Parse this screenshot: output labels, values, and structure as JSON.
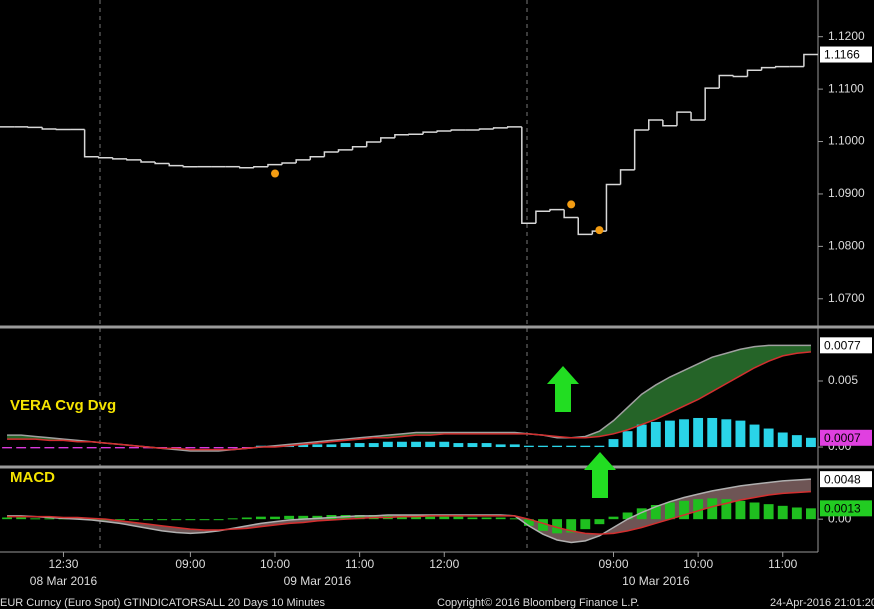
{
  "chart_data": [
    {
      "type": "line",
      "ylim": [
        1.065,
        1.127
      ],
      "yticks": [
        {
          "value": 1.07,
          "label": "1.0700"
        },
        {
          "value": 1.08,
          "label": "1.0800"
        },
        {
          "value": 1.09,
          "label": "1.0900"
        },
        {
          "value": 1.1,
          "label": "1.1000"
        },
        {
          "value": 1.11,
          "label": "1.1100"
        },
        {
          "value": 1.12,
          "label": "1.1200"
        }
      ],
      "series": [
        {
          "color": "#d8d8d8",
          "box_color": "#ffffff",
          "values": [
            1.1028,
            1.1028,
            1.1027,
            1.1024,
            1.1023,
            1.1023,
            1.0971,
            1.0969,
            1.0967,
            1.0965,
            1.0961,
            1.0958,
            1.0954,
            1.0952,
            1.0952,
            1.0952,
            1.0952,
            1.095,
            1.0952,
            1.0956,
            1.0959,
            1.0965,
            1.0971,
            1.098,
            1.0984,
            1.099,
            1.0999,
            1.1007,
            1.1013,
            1.1014,
            1.1018,
            1.102,
            1.1022,
            1.1022,
            1.1024,
            1.1026,
            1.1028,
            1.0844,
            1.0867,
            1.087,
            1.0855,
            1.0823,
            1.0829,
            1.0918,
            1.0946,
            1.1022,
            1.1041,
            1.103,
            1.1056,
            1.1041,
            1.1102,
            1.1126,
            1.1124,
            1.1136,
            1.1141,
            1.1143,
            1.1143,
            1.1166
          ]
        }
      ],
      "markers": {
        "color": "#f39c12",
        "values": [
          null,
          null,
          null,
          null,
          null,
          null,
          null,
          null,
          null,
          null,
          null,
          null,
          null,
          null,
          null,
          null,
          null,
          null,
          null,
          1.0939,
          null,
          null,
          null,
          null,
          null,
          null,
          null,
          null,
          null,
          null,
          null,
          null,
          null,
          null,
          null,
          null,
          null,
          null,
          null,
          null,
          1.088,
          null,
          1.0831,
          null,
          null,
          null,
          null,
          null,
          null,
          null,
          null,
          null,
          null,
          null,
          null,
          null,
          null,
          null
        ]
      }
    },
    {
      "type": "combo",
      "title": "VERA Cvg Dvg",
      "title_color": "#f5e400",
      "ylim": [
        -0.00136,
        0.00886
      ],
      "yticks": [
        {
          "value": 0,
          "label": "0.00"
        },
        0.005
      ],
      "histogram": {
        "color": "#2ad4e8",
        "negative_color": "#e33ce6",
        "box_color": "#e040e0",
        "values": [
          -0.0001,
          -0.0001,
          -0.0001,
          -0.0001,
          -0.0001,
          -0.0001,
          -0.0001,
          -0.0001,
          -0.0001,
          -0.0001,
          -0.0001,
          -0.0001,
          -0.0001,
          -0.0001,
          -0.0001,
          -0.0001,
          -0.0001,
          -0.0001,
          0.0001,
          0.0001,
          0.0001,
          0.0002,
          0.0002,
          0.0002,
          0.0003,
          0.0003,
          0.0003,
          0.0004,
          0.0004,
          0.0004,
          0.0004,
          0.0004,
          0.0003,
          0.0003,
          0.0003,
          0.0002,
          0.0002,
          0.0001,
          0.0001,
          0.0001,
          0.0001,
          0.0001,
          0.0001,
          0.0006,
          0.0012,
          0.0017,
          0.0019,
          0.002,
          0.0021,
          0.0022,
          0.0022,
          0.0021,
          0.002,
          0.0017,
          0.0014,
          0.0011,
          0.0009,
          0.0007
        ]
      },
      "series": [
        {
          "color": "#a0a0a0",
          "fill": "#2e7d32",
          "box_color": "#ffffff",
          "values": [
            0.0009,
            0.0009,
            0.0008,
            0.0007,
            0.0006,
            0.0005,
            0.0004,
            0.0003,
            0.0002,
            0.0001,
            0,
            -0.0001,
            -0.0002,
            -0.0003,
            -0.0003,
            -0.0003,
            -0.0002,
            -0.0001,
            0,
            0.0001,
            0.0002,
            0.0003,
            0.0004,
            0.0005,
            0.0006,
            0.0007,
            0.0008,
            0.0009,
            0.001,
            0.0011,
            0.0011,
            0.0011,
            0.0011,
            0.0011,
            0.0011,
            0.0011,
            0.0011,
            0.001,
            0.0009,
            0.0007,
            0.0007,
            0.0008,
            0.0012,
            0.002,
            0.003,
            0.004,
            0.0047,
            0.0053,
            0.0058,
            0.0063,
            0.0068,
            0.0071,
            0.0074,
            0.0076,
            0.0077,
            0.0077,
            0.0077,
            0.0077
          ]
        },
        {
          "color": "#d32f2f",
          "values": [
            0.0006,
            0.0006,
            0.0006,
            0.0005,
            0.0005,
            0.0004,
            0.0004,
            0.0003,
            0.0002,
            0.0001,
            0,
            -0.0001,
            -0.0001,
            -0.0002,
            -0.0002,
            -0.0002,
            -0.0002,
            -0.0001,
            0,
            0,
            0.0001,
            0.0002,
            0.0003,
            0.0004,
            0.0005,
            0.0006,
            0.0007,
            0.0007,
            0.0008,
            0.0009,
            0.0009,
            0.001,
            0.001,
            0.001,
            0.001,
            0.001,
            0.001,
            0.001,
            0.0009,
            0.0008,
            0.0007,
            0.0007,
            0.0008,
            0.001,
            0.0013,
            0.0017,
            0.0021,
            0.0026,
            0.0031,
            0.0036,
            0.0042,
            0.0048,
            0.0054,
            0.006,
            0.0065,
            0.0069,
            0.0071,
            0.0072
          ]
        }
      ]
    },
    {
      "type": "combo",
      "title": "MACD",
      "title_color": "#f5e400",
      "ylim": [
        -0.0037,
        0.0059
      ],
      "yticks": [
        {
          "value": 0,
          "label": "0.00"
        }
      ],
      "histogram": {
        "color": "#1fbf1f",
        "negative_color": "#1fbf1f",
        "box_color": "#22cc22",
        "values": [
          0.0002,
          0.0002,
          0.0001,
          0.0001,
          0.0001,
          0.0001,
          0,
          0,
          0,
          -0.0001,
          -0.0001,
          -0.0001,
          -0.0001,
          -0.0001,
          0,
          0,
          0.0001,
          0.0002,
          0.0003,
          0.0003,
          0.0004,
          0.0004,
          0.0004,
          0.0005,
          0.0005,
          0.0005,
          0.0005,
          0.0004,
          0.0004,
          0.0004,
          0.0003,
          0.0003,
          0.0003,
          0.0002,
          0.0002,
          0.0002,
          0.0001,
          -0.0008,
          -0.0014,
          -0.0017,
          -0.0016,
          -0.0012,
          -0.0006,
          0.0003,
          0.0008,
          0.0013,
          0.0017,
          0.002,
          0.0022,
          0.0024,
          0.0025,
          0.0024,
          0.0022,
          0.002,
          0.0018,
          0.0016,
          0.0014,
          0.0013
        ]
      },
      "series": [
        {
          "color": "#b0b0b0",
          "fill": "#8a6a6a",
          "box_color": "#ffffff",
          "values": [
            0.0004,
            0.0004,
            0.0003,
            0.0002,
            0.0001,
            0,
            -0.0001,
            -0.0003,
            -0.0005,
            -0.0008,
            -0.0011,
            -0.0014,
            -0.0016,
            -0.0017,
            -0.0016,
            -0.0014,
            -0.0011,
            -0.0008,
            -0.0005,
            -0.0003,
            -0.0001,
            0,
            0.0001,
            0.0002,
            0.0003,
            0.0004,
            0.0004,
            0.0005,
            0.0005,
            0.0005,
            0.0005,
            0.0005,
            0.0005,
            0.0005,
            0.0005,
            0.0005,
            0.0004,
            -0.0008,
            -0.0018,
            -0.0025,
            -0.0028,
            -0.0026,
            -0.002,
            -0.001,
            0,
            0.0008,
            0.0015,
            0.0021,
            0.0026,
            0.003,
            0.0034,
            0.0037,
            0.004,
            0.0042,
            0.0044,
            0.0046,
            0.0047,
            0.0048
          ]
        },
        {
          "color": "#d32f2f",
          "values": [
            0.0003,
            0.0003,
            0.0003,
            0.0003,
            0.0002,
            0.0002,
            0.0001,
            0,
            -0.0002,
            -0.0004,
            -0.0006,
            -0.0008,
            -0.001,
            -0.0012,
            -0.0013,
            -0.0013,
            -0.0012,
            -0.0011,
            -0.0009,
            -0.0007,
            -0.0005,
            -0.0004,
            -0.0002,
            -0.0001,
            0,
            0.0001,
            0.0002,
            0.0002,
            0.0003,
            0.0003,
            0.0004,
            0.0004,
            0.0004,
            0.0004,
            0.0004,
            0.0004,
            0.0004,
            0,
            -0.0005,
            -0.001,
            -0.0014,
            -0.0017,
            -0.0018,
            -0.0017,
            -0.0014,
            -0.001,
            -0.0005,
            0,
            0.0005,
            0.001,
            0.0015,
            0.0019,
            0.0023,
            0.0026,
            0.0029,
            0.0031,
            0.0032,
            0.0033
          ]
        }
      ],
      "categories": [
        null,
        null,
        null,
        null,
        "12:30",
        null,
        null,
        null,
        null,
        null,
        null,
        null,
        null,
        "09:00",
        null,
        null,
        null,
        null,
        null,
        "10:00",
        null,
        null,
        null,
        null,
        null,
        "11:00",
        null,
        null,
        null,
        null,
        null,
        "12:00",
        null,
        null,
        null,
        null,
        null,
        null,
        null,
        null,
        null,
        null,
        null,
        "09:00",
        null,
        null,
        null,
        null,
        null,
        "10:00",
        null,
        null,
        null,
        null,
        null,
        "11:00",
        null,
        null
      ],
      "dates": [
        null,
        null,
        null,
        null,
        "08 Mar 2016",
        null,
        null,
        null,
        null,
        null,
        null,
        null,
        null,
        null,
        null,
        null,
        null,
        null,
        null,
        null,
        null,
        null,
        "09 Mar 2016",
        null,
        null,
        null,
        null,
        null,
        null,
        null,
        null,
        null,
        null,
        null,
        null,
        null,
        null,
        null,
        null,
        null,
        null,
        null,
        null,
        null,
        null,
        null,
        "10 Mar 2016",
        null,
        null,
        null,
        null,
        null,
        null,
        null,
        null,
        null,
        null,
        null
      ]
    }
  ],
  "footer": {
    "left": "EUR Curncy (Euro Spot) GTINDICATORSALL 20 Days 10 Minutes",
    "center": "Copyright© 2016 Bloomberg Finance L.P.",
    "right": "24-Apr-2016 21:01:20"
  }
}
